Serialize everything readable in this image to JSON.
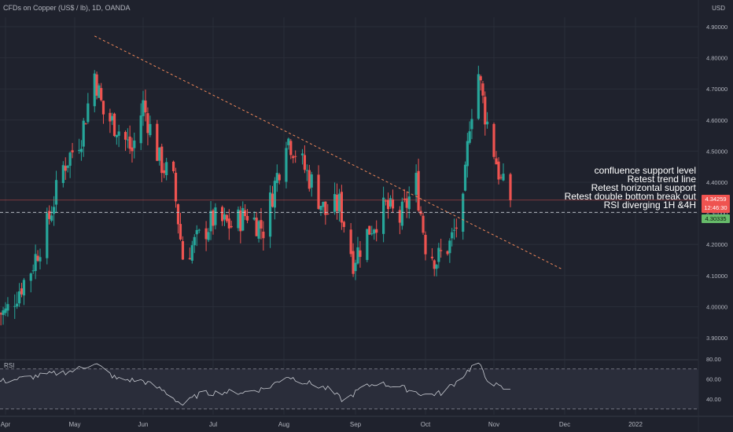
{
  "legend": "CFDs on Copper (US$ / lb), 1D, OANDA",
  "currency": "USD",
  "rsi_label": "RSI",
  "annotations": [
    "confluence support level",
    "Retest trend line",
    "Retest horizontal support",
    "Retest double bottom break out",
    "RSI diverging 1H &4H"
  ],
  "price_tag": {
    "value": "4.34259",
    "countdown": "12:46:30"
  },
  "support_tag": {
    "value": "4.30335"
  },
  "colors": {
    "background": "#1f222d",
    "up": "#26a69a",
    "down": "#ef5350",
    "trendline": "#f0885a",
    "rsi_line": "#c9ccd3",
    "rsi_band": "#2a2d3a",
    "grid": "#2a2e39"
  },
  "chart_data": [
    {
      "type": "candlestick",
      "symbol": "CFDs on Copper (US$ / lb)",
      "interval": "1D",
      "source": "OANDA",
      "x_ticks": [
        "Apr",
        "May",
        "Jun",
        "Jul",
        "Aug",
        "Sep",
        "Oct",
        "Nov",
        "Dec",
        "2022"
      ],
      "y_ticks": [
        3.9,
        4.0,
        4.1,
        4.2,
        4.3,
        4.4,
        4.5,
        4.6,
        4.7,
        4.8,
        4.9
      ],
      "y_tick_labels": [
        "3.90000",
        "4.00000",
        "4.10000",
        "4.20000",
        "4.30000",
        "4.40000",
        "4.50000",
        "4.60000",
        "4.70000",
        "4.80000",
        "4.90000"
      ],
      "ylim": [
        3.85,
        4.95
      ],
      "last_price": 4.34259,
      "horizontal_support": 4.30335,
      "trendline": {
        "points": [
          [
            "2021-05-10",
            4.87
          ],
          [
            "2021-11-30",
            4.12
          ]
        ],
        "style": "dashed"
      },
      "close_path": [
        [
          "2021-04-01",
          3.98
        ],
        [
          "2021-04-12",
          4.12
        ],
        [
          "2021-04-19",
          4.26
        ],
        [
          "2021-04-26",
          4.45
        ],
        [
          "2021-05-04",
          4.55
        ],
        [
          "2021-05-10",
          4.75
        ],
        [
          "2021-05-14",
          4.62
        ],
        [
          "2021-05-20",
          4.58
        ],
        [
          "2021-05-27",
          4.5
        ],
        [
          "2021-06-01",
          4.65
        ],
        [
          "2021-06-08",
          4.47
        ],
        [
          "2021-06-14",
          4.4
        ],
        [
          "2021-06-18",
          4.16
        ],
        [
          "2021-06-25",
          4.22
        ],
        [
          "2021-07-01",
          4.28
        ],
        [
          "2021-07-09",
          4.26
        ],
        [
          "2021-07-16",
          4.3
        ],
        [
          "2021-07-23",
          4.25
        ],
        [
          "2021-07-30",
          4.45
        ],
        [
          "2021-08-02",
          4.55
        ],
        [
          "2021-08-06",
          4.5
        ],
        [
          "2021-08-13",
          4.4
        ],
        [
          "2021-08-19",
          4.3
        ],
        [
          "2021-08-25",
          4.33
        ],
        [
          "2021-08-31",
          4.15
        ],
        [
          "2021-09-07",
          4.25
        ],
        [
          "2021-09-14",
          4.32
        ],
        [
          "2021-09-20",
          4.28
        ],
        [
          "2021-09-27",
          4.4
        ],
        [
          "2021-10-01",
          4.2
        ],
        [
          "2021-10-06",
          4.15
        ],
        [
          "2021-10-12",
          4.2
        ],
        [
          "2021-10-18",
          4.32
        ],
        [
          "2021-10-21",
          4.6
        ],
        [
          "2021-10-25",
          4.75
        ],
        [
          "2021-10-28",
          4.62
        ],
        [
          "2021-11-01",
          4.5
        ],
        [
          "2021-11-04",
          4.4
        ],
        [
          "2021-11-08",
          4.34
        ]
      ]
    },
    {
      "type": "line",
      "name": "RSI",
      "y_ticks": [
        40,
        60,
        80
      ],
      "y_tick_labels": [
        "40.00",
        "60.00",
        "80.00"
      ],
      "ylim": [
        30,
        85
      ],
      "bands": [
        70,
        30
      ],
      "values_path": [
        [
          "2021-04-01",
          58
        ],
        [
          "2021-04-15",
          63
        ],
        [
          "2021-04-30",
          68
        ],
        [
          "2021-05-10",
          76
        ],
        [
          "2021-05-20",
          60
        ],
        [
          "2021-06-01",
          58
        ],
        [
          "2021-06-10",
          48
        ],
        [
          "2021-06-18",
          34
        ],
        [
          "2021-06-25",
          45
        ],
        [
          "2021-07-05",
          47
        ],
        [
          "2021-07-15",
          47
        ],
        [
          "2021-07-25",
          51
        ],
        [
          "2021-08-02",
          63
        ],
        [
          "2021-08-10",
          57
        ],
        [
          "2021-08-20",
          50
        ],
        [
          "2021-08-27",
          38
        ],
        [
          "2021-09-03",
          50
        ],
        [
          "2021-09-10",
          56
        ],
        [
          "2021-09-20",
          52
        ],
        [
          "2021-10-01",
          44
        ],
        [
          "2021-10-08",
          46
        ],
        [
          "2021-10-15",
          57
        ],
        [
          "2021-10-22",
          72
        ],
        [
          "2021-10-25",
          76
        ],
        [
          "2021-10-28",
          62
        ],
        [
          "2021-11-03",
          52
        ],
        [
          "2021-11-08",
          48
        ]
      ]
    }
  ]
}
